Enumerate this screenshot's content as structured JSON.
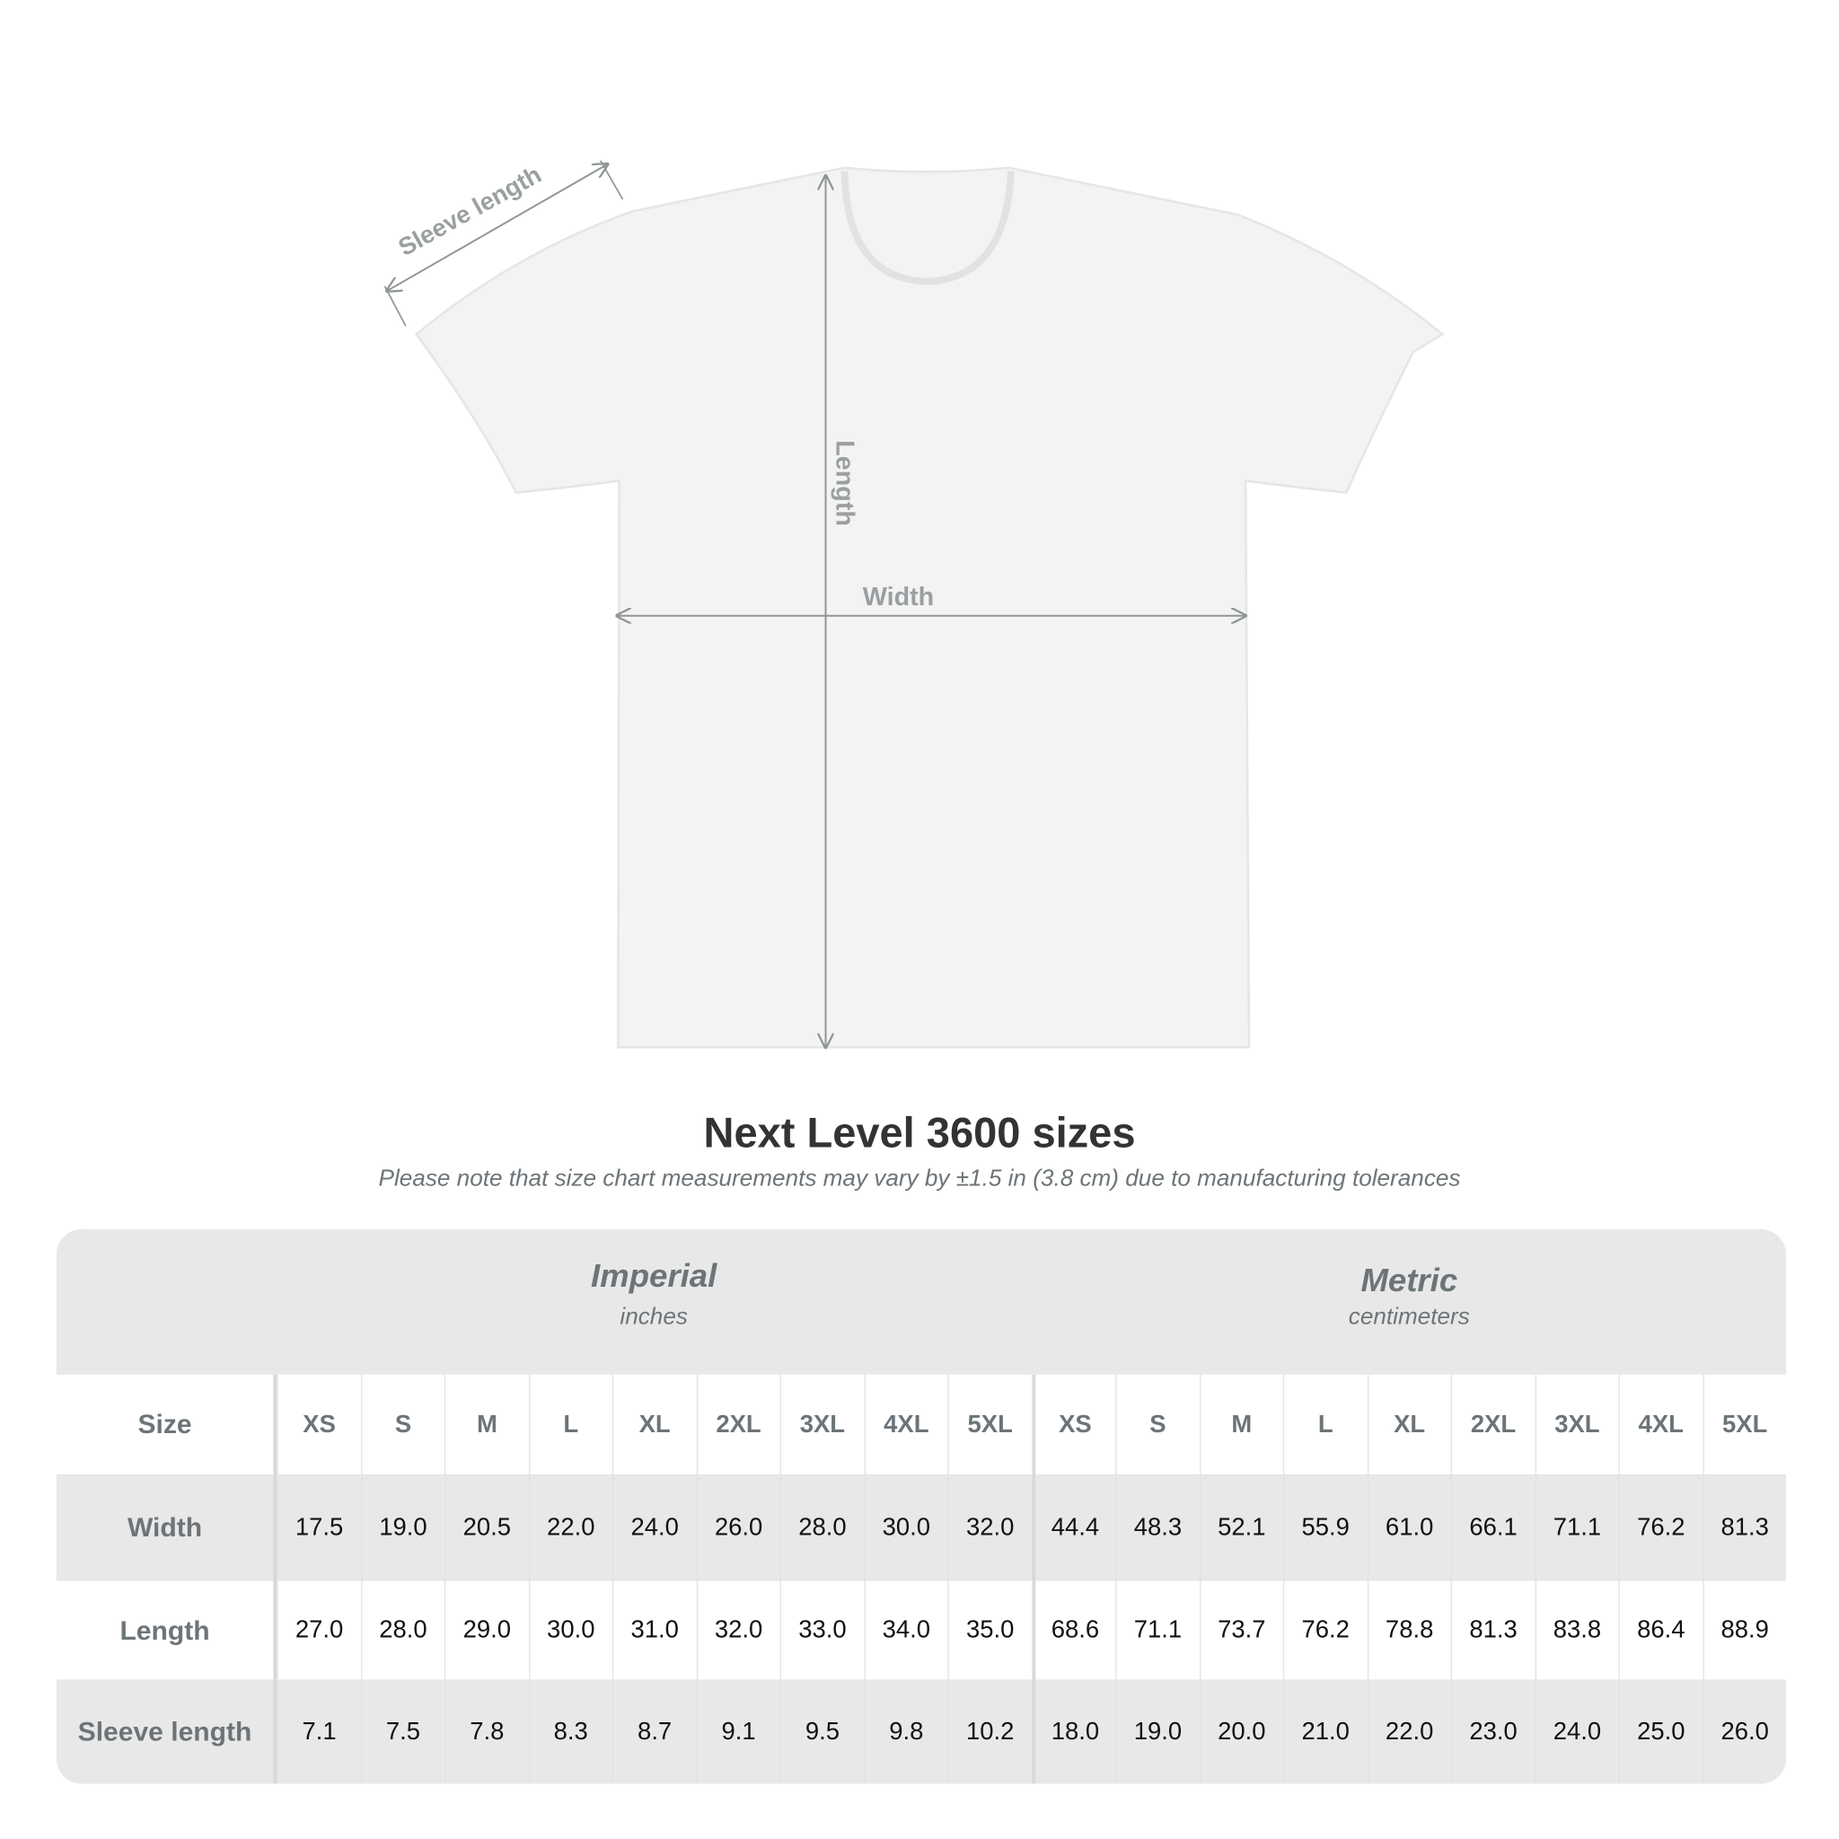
{
  "diagram": {
    "sleeve_label": "Sleeve length",
    "length_label": "Length",
    "width_label": "Width",
    "shirt_color": "#f4f4f4",
    "arrow_color": "#8f9597"
  },
  "title": "Next Level 3600 sizes",
  "subtitle": "Please note that size chart measurements may vary by ±1.5 in (3.8 cm) due to manufacturing tolerances",
  "table": {
    "imperial": {
      "name": "Imperial",
      "unit": "inches"
    },
    "metric": {
      "name": "Metric",
      "unit": "centimeters"
    },
    "size_label": "Size",
    "sizes": [
      "XS",
      "S",
      "M",
      "L",
      "XL",
      "2XL",
      "3XL",
      "4XL",
      "5XL"
    ],
    "rows": [
      {
        "label": "Width",
        "imperial": [
          "17.5",
          "19.0",
          "20.5",
          "22.0",
          "24.0",
          "26.0",
          "28.0",
          "30.0",
          "32.0"
        ],
        "metric": [
          "44.4",
          "48.3",
          "52.1",
          "55.9",
          "61.0",
          "66.1",
          "71.1",
          "76.2",
          "81.3"
        ]
      },
      {
        "label": "Length",
        "imperial": [
          "27.0",
          "28.0",
          "29.0",
          "30.0",
          "31.0",
          "32.0",
          "33.0",
          "34.0",
          "35.0"
        ],
        "metric": [
          "68.6",
          "71.1",
          "73.7",
          "76.2",
          "78.8",
          "81.3",
          "83.8",
          "86.4",
          "88.9"
        ]
      },
      {
        "label": "Sleeve length",
        "imperial": [
          "7.1",
          "7.5",
          "7.8",
          "8.3",
          "8.7",
          "9.1",
          "9.5",
          "9.8",
          "10.2"
        ],
        "metric": [
          "18.0",
          "19.0",
          "20.0",
          "21.0",
          "22.0",
          "23.0",
          "24.0",
          "25.0",
          "26.0"
        ]
      }
    ]
  }
}
